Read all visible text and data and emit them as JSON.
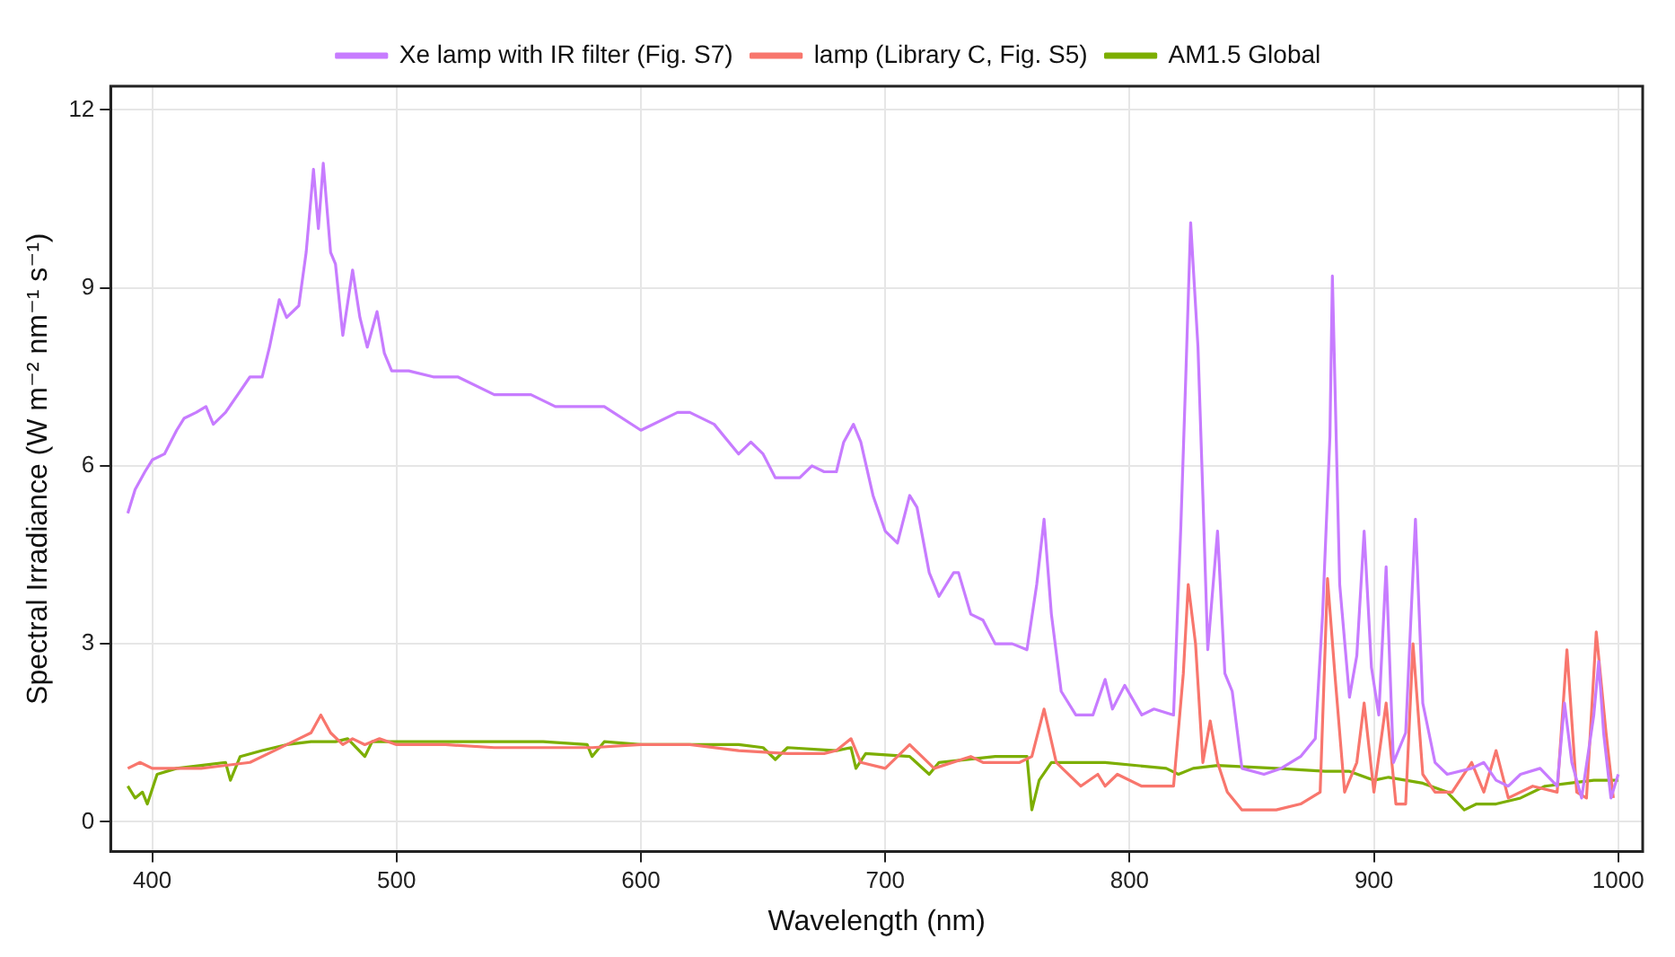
{
  "chart_data": {
    "type": "line",
    "xlabel": "Wavelength (nm)",
    "ylabel": "Spectral Irradiance (W m⁻² nm⁻¹ s⁻¹)",
    "xlim": [
      383,
      1010
    ],
    "ylim": [
      -0.5,
      12.4
    ],
    "xticks": [
      400,
      500,
      600,
      700,
      800,
      900,
      1000
    ],
    "yticks": [
      0,
      3,
      6,
      9,
      12
    ],
    "grid": true,
    "legend": "top",
    "marker": "none",
    "line_style": "solid",
    "series": [
      {
        "name": "Xe lamp with IR filter (Fig. S7)",
        "color": "#c77cff",
        "x": [
          390,
          393,
          397,
          400,
          405,
          410,
          413,
          418,
          422,
          425,
          430,
          435,
          440,
          445,
          448,
          452,
          455,
          460,
          463,
          466,
          468,
          470,
          473,
          475,
          478,
          482,
          485,
          488,
          492,
          495,
          498,
          505,
          515,
          525,
          540,
          555,
          565,
          585,
          600,
          615,
          620,
          630,
          640,
          645,
          650,
          655,
          665,
          670,
          675,
          680,
          683,
          687,
          690,
          695,
          700,
          705,
          710,
          713,
          718,
          722,
          728,
          730,
          735,
          740,
          745,
          752,
          758,
          762,
          765,
          768,
          772,
          778,
          785,
          790,
          793,
          798,
          805,
          810,
          818,
          821,
          823,
          825,
          828,
          830,
          832,
          836,
          839,
          842,
          846,
          855,
          862,
          870,
          876,
          879,
          882,
          883,
          886,
          890,
          893,
          896,
          899,
          902,
          905,
          908,
          913,
          917,
          920,
          925,
          930,
          940,
          945,
          950,
          955,
          960,
          968,
          975,
          978,
          981,
          985,
          990,
          992,
          994,
          997,
          1000
        ],
        "values": [
          5.2,
          5.6,
          5.9,
          6.1,
          6.2,
          6.6,
          6.8,
          6.9,
          7.0,
          6.7,
          6.9,
          7.2,
          7.5,
          7.5,
          8.0,
          8.8,
          8.5,
          8.7,
          9.6,
          11.0,
          10.0,
          11.1,
          9.6,
          9.4,
          8.2,
          9.3,
          8.5,
          8.0,
          8.6,
          7.9,
          7.6,
          7.6,
          7.5,
          7.5,
          7.2,
          7.2,
          7.0,
          7.0,
          6.6,
          6.9,
          6.9,
          6.7,
          6.2,
          6.4,
          6.2,
          5.8,
          5.8,
          6.0,
          5.9,
          5.9,
          6.4,
          6.7,
          6.4,
          5.5,
          4.9,
          4.7,
          5.5,
          5.3,
          4.2,
          3.8,
          4.2,
          4.2,
          3.5,
          3.4,
          3.0,
          3.0,
          2.9,
          4.0,
          5.1,
          3.5,
          2.2,
          1.8,
          1.8,
          2.4,
          1.9,
          2.3,
          1.8,
          1.9,
          1.8,
          5.0,
          7.5,
          10.1,
          8.0,
          5.5,
          2.9,
          4.9,
          2.5,
          2.2,
          0.9,
          0.8,
          0.9,
          1.1,
          1.4,
          3.5,
          6.5,
          9.2,
          4.0,
          2.1,
          2.8,
          4.9,
          2.6,
          1.8,
          4.3,
          1.0,
          1.5,
          5.1,
          2.0,
          1.0,
          0.8,
          0.9,
          1.0,
          0.7,
          0.6,
          0.8,
          0.9,
          0.6,
          2.0,
          1.0,
          0.4,
          1.8,
          2.7,
          1.5,
          0.4,
          0.8
        ]
      },
      {
        "name": "lamp (Library C, Fig. S5)",
        "color": "#f8766d",
        "x": [
          390,
          395,
          400,
          410,
          420,
          440,
          450,
          460,
          465,
          469,
          473,
          478,
          482,
          487,
          493,
          500,
          520,
          540,
          560,
          580,
          600,
          620,
          640,
          660,
          675,
          680,
          686,
          690,
          700,
          710,
          715,
          720,
          735,
          740,
          745,
          755,
          760,
          765,
          770,
          780,
          787,
          790,
          795,
          805,
          818,
          822,
          824,
          827,
          830,
          833,
          836,
          840,
          846,
          860,
          870,
          878,
          881,
          884,
          888,
          893,
          896,
          900,
          905,
          909,
          913,
          916,
          920,
          925,
          932,
          940,
          945,
          950,
          955,
          965,
          975,
          979,
          983,
          987,
          991,
          995,
          998
        ],
        "values": [
          0.9,
          1.0,
          0.9,
          0.9,
          0.9,
          1.0,
          1.2,
          1.4,
          1.5,
          1.8,
          1.5,
          1.3,
          1.4,
          1.3,
          1.4,
          1.3,
          1.3,
          1.25,
          1.25,
          1.25,
          1.3,
          1.3,
          1.2,
          1.15,
          1.15,
          1.2,
          1.4,
          1.0,
          0.9,
          1.3,
          1.1,
          0.9,
          1.1,
          1.0,
          1.0,
          1.0,
          1.1,
          1.9,
          1.0,
          0.6,
          0.8,
          0.6,
          0.8,
          0.6,
          0.6,
          2.5,
          4.0,
          3.0,
          1.0,
          1.7,
          1.0,
          0.5,
          0.2,
          0.2,
          0.3,
          0.5,
          4.1,
          2.5,
          0.5,
          1.0,
          2.0,
          0.5,
          2.0,
          0.3,
          0.3,
          3.0,
          0.8,
          0.5,
          0.5,
          1.0,
          0.5,
          1.2,
          0.4,
          0.6,
          0.5,
          2.9,
          0.5,
          0.4,
          3.2,
          1.5,
          0.4
        ]
      },
      {
        "name": "AM1.5 Global",
        "color": "#7cae00",
        "x": [
          390,
          393,
          396,
          398,
          402,
          410,
          420,
          430,
          432,
          436,
          445,
          455,
          465,
          475,
          480,
          487,
          490,
          500,
          520,
          540,
          560,
          578,
          580,
          585,
          600,
          620,
          640,
          650,
          655,
          660,
          680,
          686,
          688,
          692,
          710,
          718,
          722,
          745,
          758,
          760,
          763,
          768,
          780,
          790,
          815,
          820,
          826,
          836,
          860,
          880,
          890,
          900,
          906,
          920,
          930,
          937,
          942,
          950,
          960,
          970,
          980,
          990,
          1000
        ],
        "values": [
          0.6,
          0.4,
          0.5,
          0.3,
          0.8,
          0.9,
          0.95,
          1.0,
          0.7,
          1.1,
          1.2,
          1.3,
          1.35,
          1.35,
          1.4,
          1.1,
          1.35,
          1.35,
          1.35,
          1.35,
          1.35,
          1.3,
          1.1,
          1.35,
          1.3,
          1.3,
          1.3,
          1.25,
          1.05,
          1.25,
          1.2,
          1.25,
          0.9,
          1.15,
          1.1,
          0.8,
          1.0,
          1.1,
          1.1,
          0.2,
          0.7,
          1.0,
          1.0,
          1.0,
          0.9,
          0.8,
          0.9,
          0.95,
          0.9,
          0.85,
          0.85,
          0.7,
          0.75,
          0.65,
          0.5,
          0.2,
          0.3,
          0.3,
          0.4,
          0.6,
          0.65,
          0.7,
          0.7
        ]
      }
    ]
  }
}
